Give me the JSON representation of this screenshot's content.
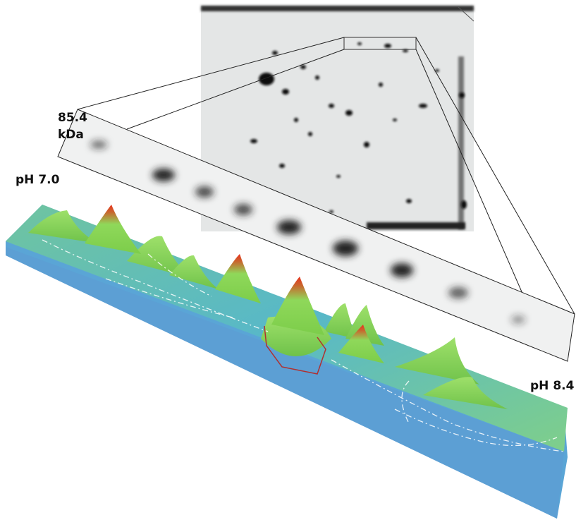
{
  "labels": {
    "molecular_weight": [
      "85.4",
      "kDa"
    ],
    "ph_start": "pH 7.0",
    "ph_end": "pH 8.4"
  }
}
